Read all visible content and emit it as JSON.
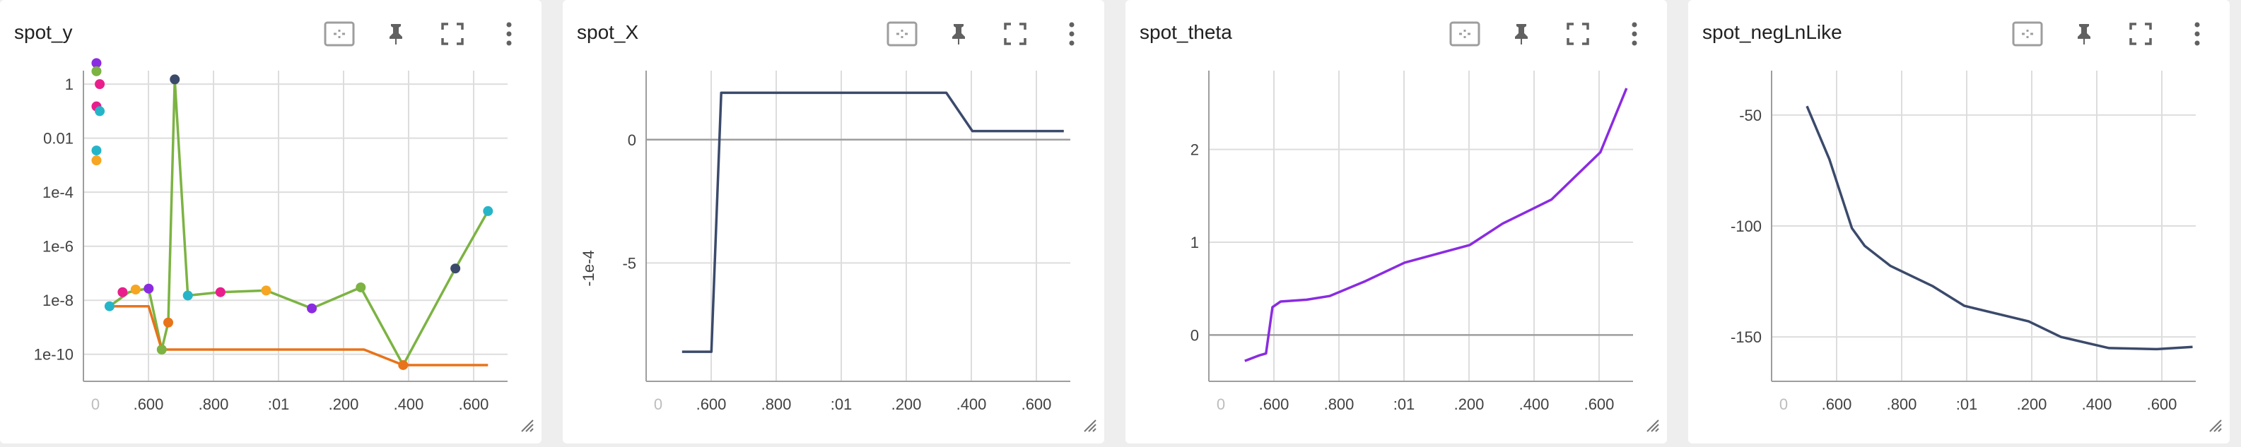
{
  "colors": {
    "accent_line": "#3b4a6b",
    "purple": "#8a2be2",
    "green": "#7cb342",
    "orange": "#e8731a"
  },
  "cards": [
    {
      "title": "spot_y",
      "x_ticks": [
        "0",
        ".600",
        ".800",
        ":01",
        ".200",
        ".400",
        ".600"
      ],
      "y_ticks": [
        "1",
        "0.01",
        "1e-4",
        "1e-6",
        "1e-8",
        "1e-10"
      ]
    },
    {
      "title": "spot_X",
      "x_ticks": [
        "0",
        ".600",
        ".800",
        ":01",
        ".200",
        ".400",
        ".600"
      ],
      "y_ticks": [
        "0",
        "-5"
      ],
      "y_axis_tag": "-1e-4"
    },
    {
      "title": "spot_theta",
      "x_ticks": [
        "0",
        ".600",
        ".800",
        ":01",
        ".200",
        ".400",
        ".600"
      ],
      "y_ticks": [
        "2",
        "1",
        "0"
      ]
    },
    {
      "title": "spot_negLnLike",
      "x_ticks": [
        "0",
        ".600",
        ".800",
        ":01",
        ".200",
        ".400",
        ".600"
      ],
      "y_ticks": [
        "-50",
        "-100",
        "-150"
      ]
    }
  ],
  "icons": [
    "fit-domain-icon",
    "pin-icon",
    "fullscreen-icon",
    "more-vert-icon"
  ],
  "chart_data": [
    {
      "type": "line",
      "title": "spot_y",
      "yscale": "log",
      "x_tick_labels": [
        "0",
        ".600",
        ".800",
        ":01",
        ".200",
        ".400",
        ".600"
      ],
      "y_tick_labels": [
        "1",
        "0.01",
        "1e-4",
        "1e-6",
        "1e-8",
        "1e-10"
      ],
      "series": [
        {
          "color": "#7cb342",
          "points": [
            [
              0.48,
              6e-09
            ],
            [
              0.54,
              2e-08
            ],
            [
              0.58,
              2.5e-08
            ],
            [
              0.6,
              2.7e-08
            ],
            [
              0.64,
              1.5e-10
            ],
            [
              0.66,
              1.5e-09
            ],
            [
              0.68,
              1.5
            ],
            [
              0.72,
              1.5e-08
            ],
            [
              0.82,
              2e-08
            ],
            [
              0.96,
              2.3e-08
            ],
            [
              1.1,
              5e-09
            ],
            [
              1.25,
              3e-08
            ],
            [
              1.38,
              4e-11
            ],
            [
              1.54,
              1.5e-07
            ],
            [
              1.64,
              2e-05
            ]
          ]
        },
        {
          "color": "#e8731a",
          "points": [
            [
              0.48,
              6e-09
            ],
            [
              0.6,
              6e-09
            ],
            [
              0.64,
              1.5e-10
            ],
            [
              1.26,
              1.5e-10
            ],
            [
              1.38,
              4e-11
            ],
            [
              1.64,
              4e-11
            ]
          ]
        }
      ],
      "markers": [
        {
          "x": 0.44,
          "y": 6,
          "color": "#8a2be2"
        },
        {
          "x": 0.44,
          "y": 3,
          "color": "#7cb342"
        },
        {
          "x": 0.45,
          "y": 1,
          "color": "#e91e8c"
        },
        {
          "x": 0.44,
          "y": 0.15,
          "color": "#e91e8c"
        },
        {
          "x": 0.45,
          "y": 0.1,
          "color": "#26b5c8"
        },
        {
          "x": 0.44,
          "y": 0.0035,
          "color": "#26b5c8"
        },
        {
          "x": 0.44,
          "y": 0.0015,
          "color": "#f6a623"
        },
        {
          "x": 0.48,
          "y": 6e-09,
          "color": "#26b5c8"
        },
        {
          "x": 0.52,
          "y": 2e-08,
          "color": "#e91e8c"
        },
        {
          "x": 0.56,
          "y": 2.5e-08,
          "color": "#f6a623"
        },
        {
          "x": 0.6,
          "y": 2.7e-08,
          "color": "#8a2be2"
        },
        {
          "x": 0.64,
          "y": 1.5e-10,
          "color": "#7cb342"
        },
        {
          "x": 0.66,
          "y": 1.5e-09,
          "color": "#e8731a"
        },
        {
          "x": 0.68,
          "y": 1.5,
          "color": "#3b4a6b"
        },
        {
          "x": 0.72,
          "y": 1.5e-08,
          "color": "#26b5c8"
        },
        {
          "x": 0.82,
          "y": 2e-08,
          "color": "#e91e8c"
        },
        {
          "x": 0.96,
          "y": 2.3e-08,
          "color": "#f6a623"
        },
        {
          "x": 1.1,
          "y": 5e-09,
          "color": "#8a2be2"
        },
        {
          "x": 1.25,
          "y": 3e-08,
          "color": "#7cb342"
        },
        {
          "x": 1.38,
          "y": 4e-11,
          "color": "#e8731a"
        },
        {
          "x": 1.54,
          "y": 1.5e-07,
          "color": "#3b4a6b"
        },
        {
          "x": 1.64,
          "y": 2e-05,
          "color": "#26b5c8"
        }
      ]
    },
    {
      "type": "line",
      "title": "spot_X",
      "x_tick_labels": [
        "0",
        ".600",
        ".800",
        ":01",
        ".200",
        ".400",
        ".600"
      ],
      "y_tick_labels": [
        "0",
        "-5"
      ],
      "series": [
        {
          "color": "#3b4a6b",
          "points": [
            [
              0.51,
              -8.6
            ],
            [
              0.6,
              -8.6
            ],
            [
              0.63,
              1.9
            ],
            [
              1.32,
              1.9
            ],
            [
              1.4,
              0.35
            ],
            [
              1.68,
              0.35
            ]
          ]
        }
      ]
    },
    {
      "type": "line",
      "title": "spot_theta",
      "x_tick_labels": [
        "0",
        ".600",
        ".800",
        ":01",
        ".200",
        ".400",
        ".600"
      ],
      "y_tick_labels": [
        "2",
        "1",
        "0"
      ],
      "series": [
        {
          "color": "#8a2be2",
          "points": [
            [
              0.51,
              -0.28
            ],
            [
              0.555,
              -0.22
            ],
            [
              0.575,
              -0.2
            ],
            [
              0.595,
              0.3
            ],
            [
              0.62,
              0.36
            ],
            [
              0.7,
              0.38
            ],
            [
              0.77,
              0.42
            ],
            [
              0.88,
              0.58
            ],
            [
              1.0,
              0.78
            ],
            [
              1.2,
              0.97
            ],
            [
              1.3,
              1.2
            ],
            [
              1.45,
              1.46
            ],
            [
              1.6,
              1.97
            ],
            [
              1.68,
              2.66
            ]
          ]
        }
      ]
    },
    {
      "type": "line",
      "title": "spot_negLnLike",
      "x_tick_labels": [
        "0",
        ".600",
        ".800",
        ":01",
        ".200",
        ".400",
        ".600"
      ],
      "y_tick_labels": [
        "-50",
        "-100",
        "-150"
      ],
      "series": [
        {
          "color": "#3b4a6b",
          "points": [
            [
              0.51,
              -46
            ],
            [
              0.58,
              -70
            ],
            [
              0.65,
              -101
            ],
            [
              0.69,
              -109
            ],
            [
              0.77,
              -118
            ],
            [
              0.9,
              -127
            ],
            [
              1.0,
              -136
            ],
            [
              1.2,
              -143
            ],
            [
              1.3,
              -150
            ],
            [
              1.45,
              -155
            ],
            [
              1.6,
              -155.5
            ],
            [
              1.71,
              -154.5
            ]
          ]
        }
      ]
    }
  ]
}
